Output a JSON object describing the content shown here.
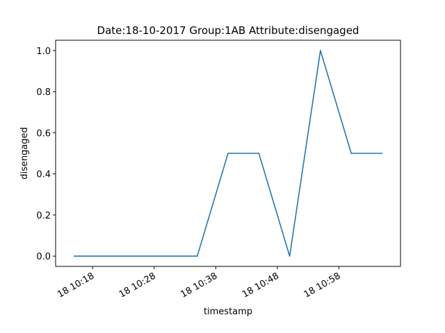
{
  "chart_data": {
    "type": "line",
    "title": "Date:18-10-2017  Group:1AB Attribute:disengaged",
    "xlabel": "timestamp",
    "ylabel": "disengaged",
    "x": [
      "10:15",
      "10:35",
      "10:40",
      "10:45",
      "10:50",
      "10:55",
      "11:00",
      "11:05"
    ],
    "x_ticks": [
      {
        "label": "18 10:18",
        "value": "10:18"
      },
      {
        "label": "18 10:28",
        "value": "10:28"
      },
      {
        "label": "18 10:38",
        "value": "10:38"
      },
      {
        "label": "18 10:48",
        "value": "10:48"
      },
      {
        "label": "18 10:58",
        "value": "10:58"
      }
    ],
    "xlim": [
      "10:12",
      "11:08"
    ],
    "y_ticks": [
      "0.0",
      "0.2",
      "0.4",
      "0.6",
      "0.8",
      "1.0"
    ],
    "ylim": [
      -0.05,
      1.05
    ],
    "series": [
      {
        "values": [
          0.0,
          0.0,
          0.5,
          0.5,
          0.0,
          1.0,
          0.5,
          0.5
        ],
        "color": "#1f77b4"
      }
    ],
    "grid": false,
    "legend": "none"
  }
}
